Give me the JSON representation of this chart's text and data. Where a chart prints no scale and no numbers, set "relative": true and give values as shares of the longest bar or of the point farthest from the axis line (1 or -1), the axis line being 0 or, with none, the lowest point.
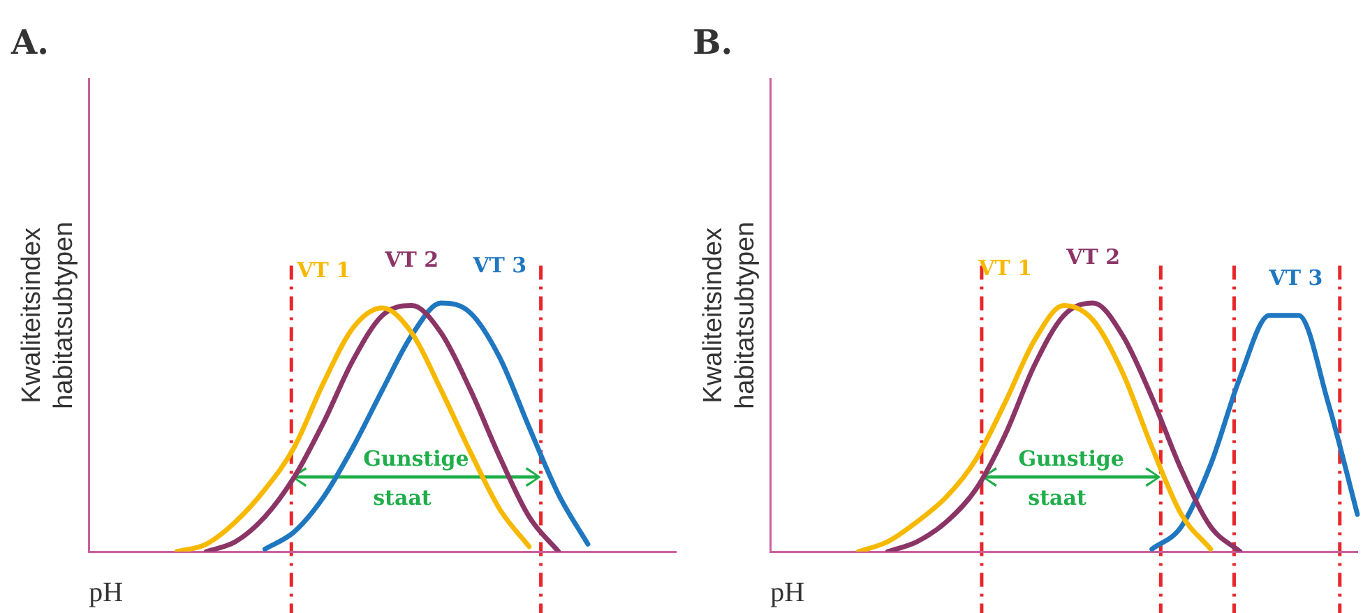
{
  "chart_data": [
    {
      "type": "line",
      "title": "A.",
      "xlabel": "pH",
      "ylabel": "Kwaliteitsindex habitatsubtypen",
      "relative": true,
      "tick_labels": false,
      "legend": false,
      "grid": false,
      "categories": [
        null,
        null,
        null,
        null,
        null,
        null,
        null,
        null,
        null,
        null,
        null,
        null,
        null,
        null,
        null,
        null,
        null,
        null,
        null,
        null,
        null
      ],
      "series": [
        {
          "name": "VT 1",
          "color": "#f7b900",
          "values": [
            null,
            null,
            null,
            0,
            0.03,
            0.12,
            0.25,
            0.42,
            0.68,
            0.9,
            0.98,
            0.88,
            0.65,
            0.4,
            0.17,
            0.02,
            null,
            null,
            null,
            null,
            null
          ]
        },
        {
          "name": "VT 2",
          "color": "#8b3566",
          "values": [
            null,
            null,
            null,
            null,
            0,
            0.04,
            0.14,
            0.3,
            0.52,
            0.77,
            0.95,
            0.99,
            0.88,
            0.65,
            0.38,
            0.14,
            0,
            null,
            null,
            null,
            null
          ]
        },
        {
          "name": "VT 3",
          "color": "#1f77c0",
          "values": [
            null,
            null,
            null,
            null,
            null,
            null,
            0.01,
            0.08,
            0.22,
            0.42,
            0.65,
            0.87,
            1,
            0.96,
            0.78,
            0.5,
            0.23,
            0.03,
            null,
            null,
            null
          ]
        }
      ],
      "annotations": [
        "Gunstige staat"
      ]
    },
    {
      "type": "line",
      "title": "B.",
      "xlabel": "pH",
      "ylabel": "Kwaliteitsindex habitatsubtypen",
      "relative": true,
      "tick_labels": false,
      "legend": false,
      "grid": false,
      "categories": [
        null,
        null,
        null,
        null,
        null,
        null,
        null,
        null,
        null,
        null,
        null,
        null,
        null,
        null,
        null,
        null,
        null,
        null,
        null,
        null,
        null
      ],
      "series": [
        {
          "name": "VT 1",
          "color": "#f7b900",
          "values": [
            null,
            null,
            null,
            0,
            0.04,
            0.12,
            0.22,
            0.37,
            0.6,
            0.85,
            0.99,
            0.93,
            0.72,
            0.42,
            0.15,
            0.01,
            null,
            null,
            null,
            null,
            null
          ]
        },
        {
          "name": "VT 2",
          "color": "#8b3566",
          "values": [
            null,
            null,
            null,
            null,
            0,
            0.04,
            0.12,
            0.25,
            0.47,
            0.75,
            0.95,
            1,
            0.87,
            0.62,
            0.33,
            0.1,
            0,
            null,
            null,
            null,
            null
          ]
        },
        {
          "name": "VT 3",
          "color": "#1f77c0",
          "values": [
            null,
            null,
            null,
            null,
            null,
            null,
            null,
            null,
            null,
            null,
            null,
            null,
            null,
            0.01,
            0.1,
            0.35,
            0.7,
            0.95,
            0.95,
            0.6,
            0.15
          ]
        }
      ],
      "annotations": [
        "Gunstige staat"
      ]
    }
  ]
}
